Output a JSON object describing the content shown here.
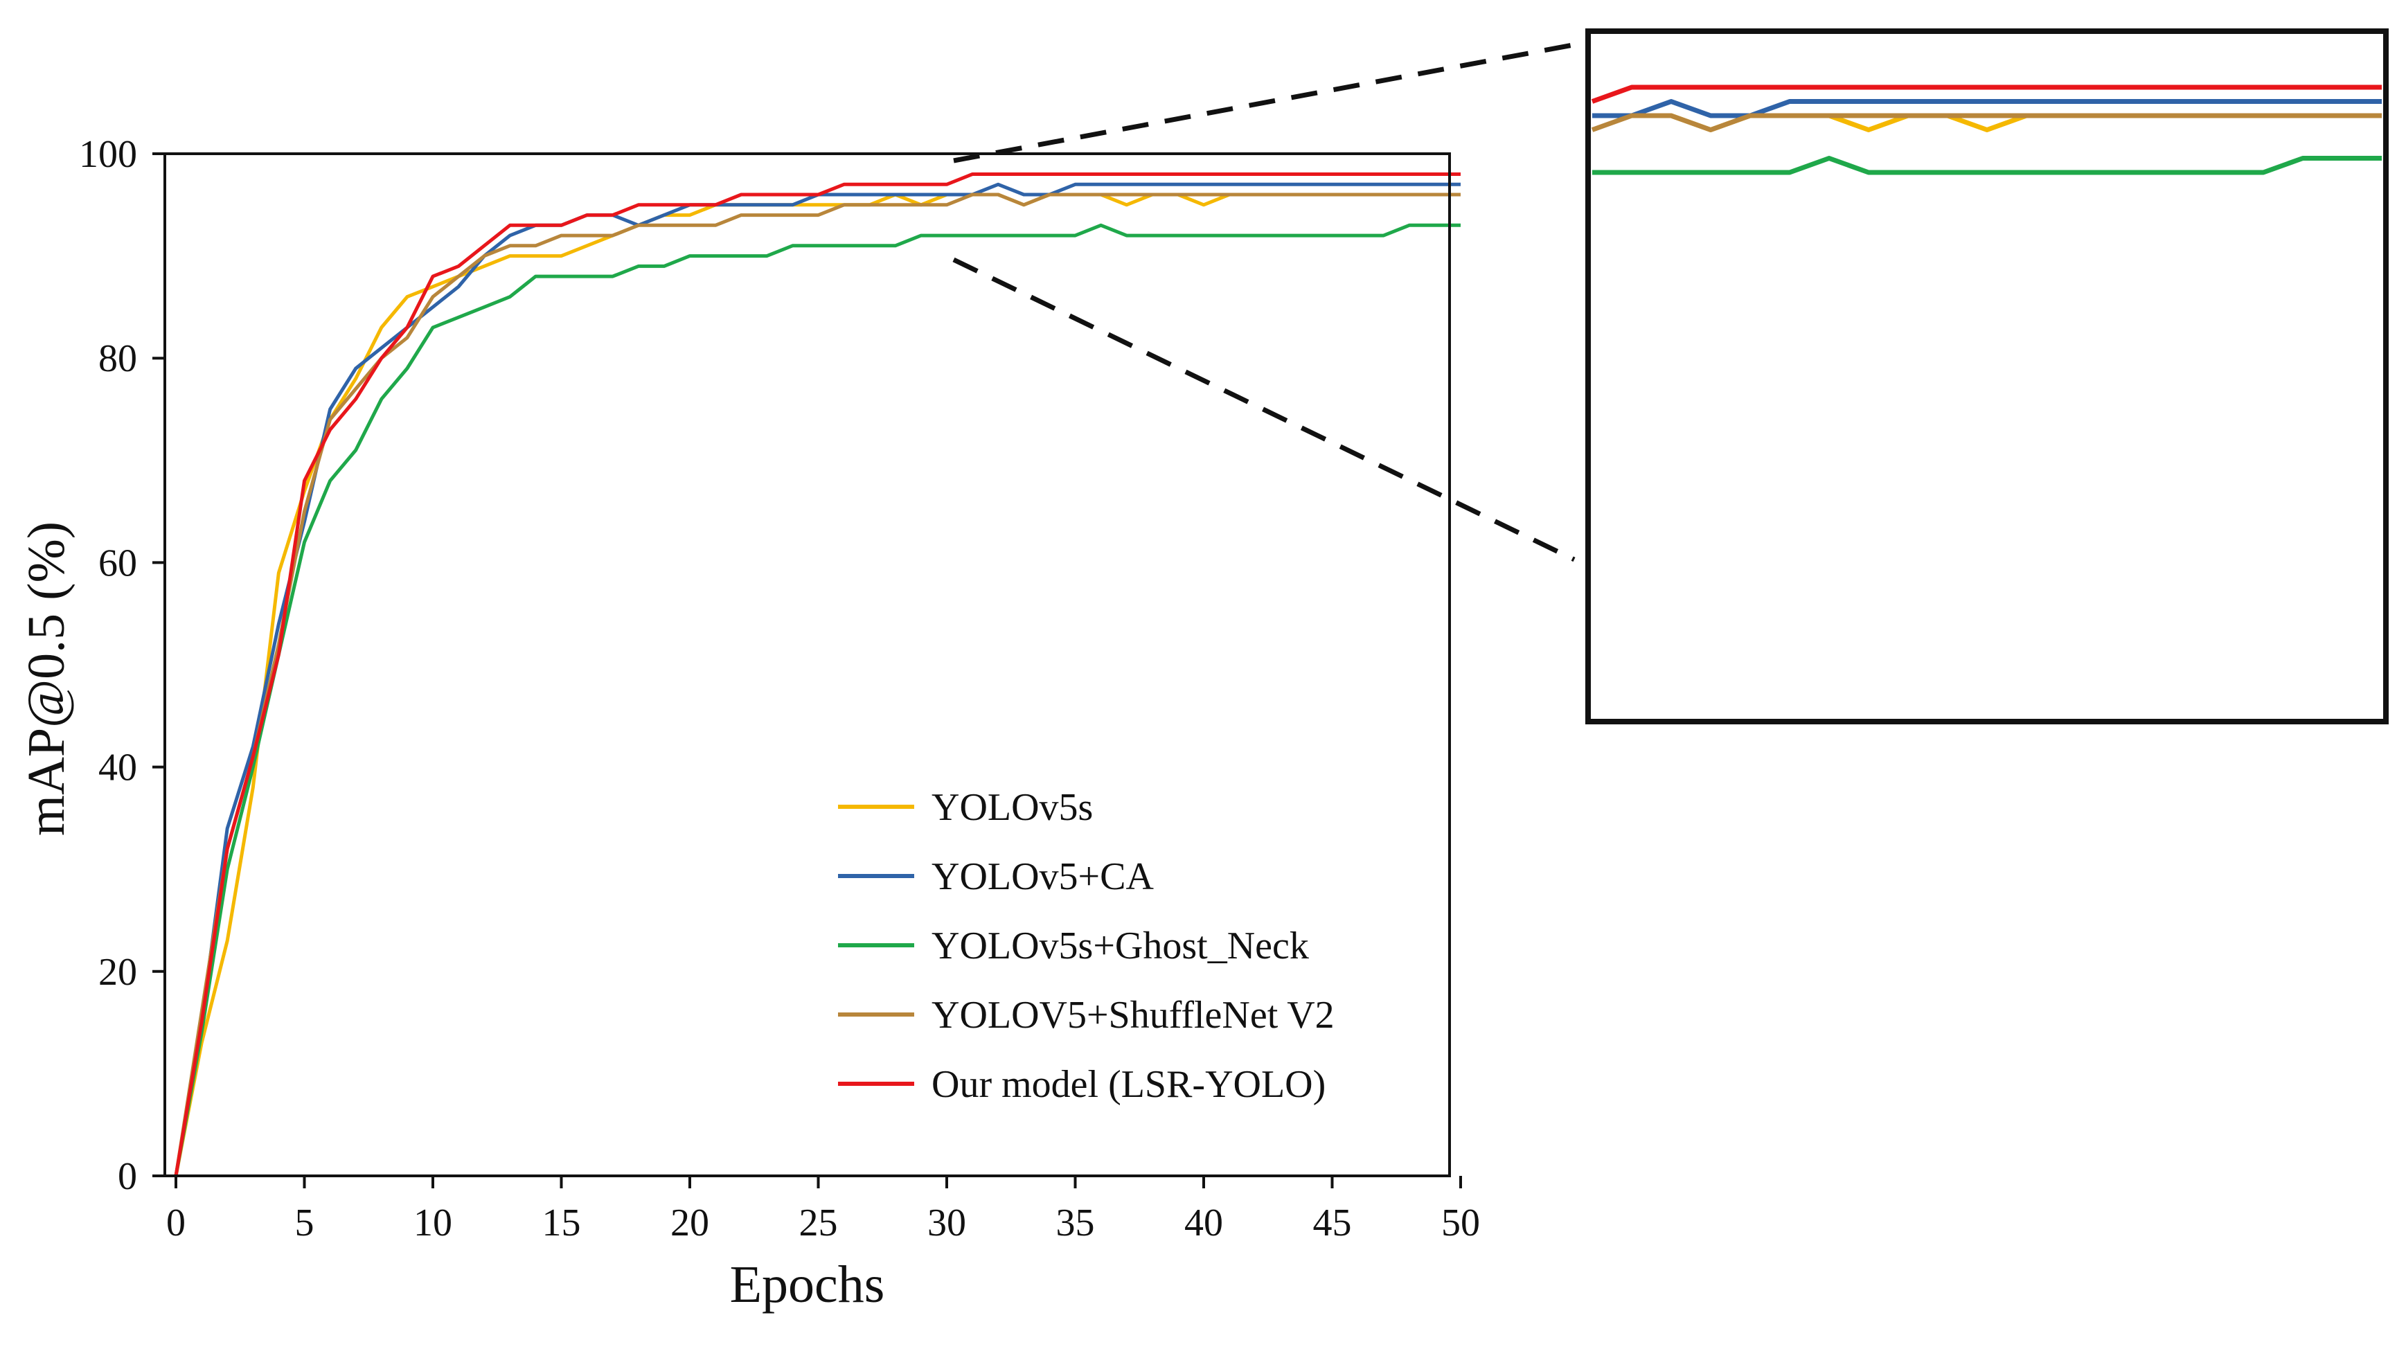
{
  "chart_data": {
    "type": "line",
    "title": "",
    "xlabel": "Epochs",
    "ylabel": "mAP@0.5 (%)",
    "xlim": [
      0,
      50
    ],
    "ylim": [
      0,
      100
    ],
    "xticks": [
      0,
      5,
      10,
      15,
      20,
      25,
      30,
      35,
      40,
      45,
      50
    ],
    "yticks": [
      0,
      20,
      40,
      60,
      80,
      100
    ],
    "grid": false,
    "legend_position": "lower-right",
    "inset": {
      "description": "zoomed view",
      "x_range": [
        30,
        50
      ],
      "y_range": [
        90,
        100
      ],
      "position": "top-right outside main axes"
    },
    "x": [
      0,
      1,
      2,
      3,
      4,
      5,
      6,
      7,
      8,
      9,
      10,
      11,
      12,
      13,
      14,
      15,
      16,
      17,
      18,
      19,
      20,
      21,
      22,
      23,
      24,
      25,
      26,
      27,
      28,
      29,
      30,
      31,
      32,
      33,
      34,
      35,
      36,
      37,
      38,
      39,
      40,
      41,
      42,
      43,
      44,
      45,
      46,
      47,
      48,
      49,
      50
    ],
    "series": [
      {
        "name": "YOLOv5s",
        "color": "#f5b800",
        "values": [
          0,
          13,
          23,
          38,
          59,
          67,
          74,
          78,
          83,
          86,
          87,
          88,
          89,
          90,
          90,
          90,
          91,
          92,
          93,
          94,
          94,
          95,
          95,
          95,
          95,
          95,
          95,
          95,
          96,
          95,
          96,
          96,
          96,
          95,
          96,
          96,
          96,
          95,
          96,
          96,
          95,
          96,
          96,
          96,
          96,
          96,
          96,
          96,
          96,
          96,
          96
        ]
      },
      {
        "name": "YOLOv5+CA",
        "color": "#2f63a8",
        "values": [
          0,
          15,
          34,
          42,
          54,
          64,
          75,
          79,
          81,
          83,
          85,
          87,
          90,
          92,
          93,
          93,
          94,
          94,
          93,
          94,
          95,
          95,
          95,
          95,
          95,
          96,
          96,
          96,
          96,
          96,
          96,
          96,
          97,
          96,
          96,
          97,
          97,
          97,
          97,
          97,
          97,
          97,
          97,
          97,
          97,
          97,
          97,
          97,
          97,
          97,
          97
        ]
      },
      {
        "name": "YOLOv5s+Ghost_Neck",
        "color": "#1fa84a",
        "values": [
          0,
          14,
          30,
          40,
          51,
          62,
          68,
          71,
          76,
          79,
          83,
          84,
          85,
          86,
          88,
          88,
          88,
          88,
          89,
          89,
          90,
          90,
          90,
          90,
          91,
          91,
          91,
          91,
          91,
          92,
          92,
          92,
          92,
          92,
          92,
          92,
          93,
          92,
          92,
          92,
          92,
          92,
          92,
          92,
          92,
          92,
          92,
          92,
          93,
          93,
          93
        ]
      },
      {
        "name": "YOLOV5+ShuffleNet V2",
        "color": "#b8863b",
        "values": [
          0,
          16,
          32,
          41,
          52,
          65,
          74,
          77,
          80,
          82,
          86,
          88,
          90,
          91,
          91,
          92,
          92,
          92,
          93,
          93,
          93,
          93,
          94,
          94,
          94,
          94,
          95,
          95,
          95,
          95,
          95,
          96,
          96,
          95,
          96,
          96,
          96,
          96,
          96,
          96,
          96,
          96,
          96,
          96,
          96,
          96,
          96,
          96,
          96,
          96,
          96
        ]
      },
      {
        "name": "Our model (LSR-YOLO)",
        "color": "#e8161b",
        "values": [
          0,
          15,
          32,
          41,
          51,
          68,
          73,
          76,
          80,
          83,
          88,
          89,
          91,
          93,
          93,
          93,
          94,
          94,
          95,
          95,
          95,
          95,
          96,
          96,
          96,
          96,
          97,
          97,
          97,
          97,
          97,
          98,
          98,
          98,
          98,
          98,
          98,
          98,
          98,
          98,
          98,
          98,
          98,
          98,
          98,
          98,
          98,
          98,
          98,
          98,
          98
        ]
      }
    ]
  }
}
